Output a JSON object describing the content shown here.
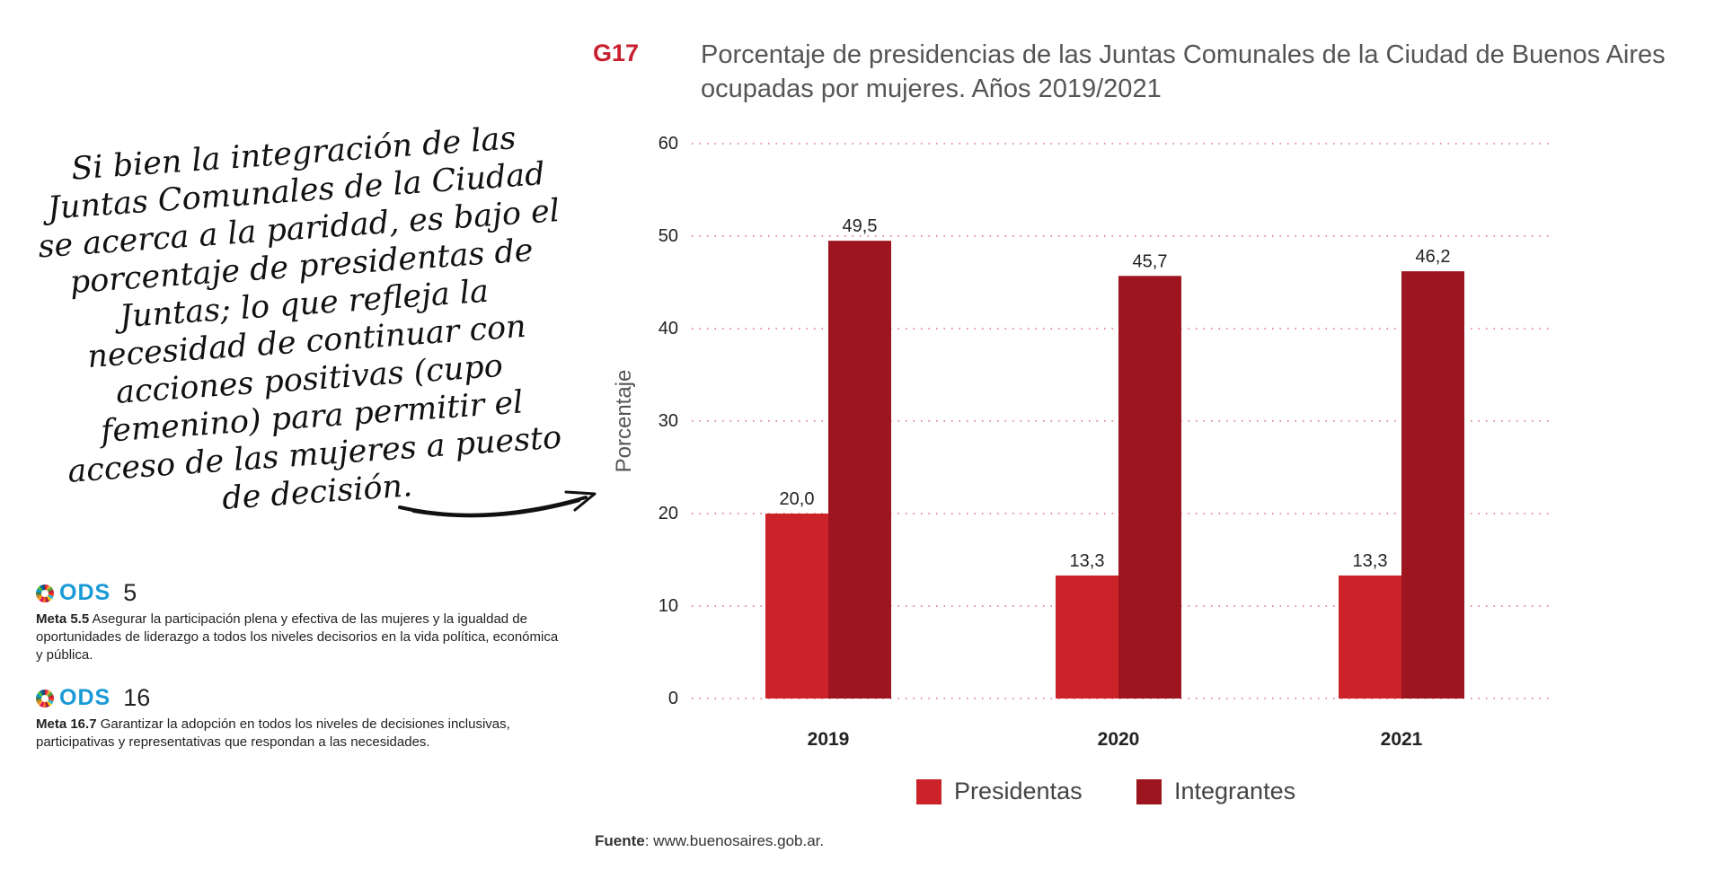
{
  "header": {
    "code": "G17",
    "title_line1": "Porcentaje de presidencias de las Juntas Comunales de la Ciudad de Buenos Aires",
    "title_line2": "ocupadas por mujeres. Años 2019/2021"
  },
  "quote": {
    "text": "Si bien la integración de las Juntas Comunales de la Ciudad se acerca a la paridad, es bajo el porcentaje de presidentas de Juntas; lo que refleja la necesidad de continuar con acciones positivas (cupo femenino) para permitir el acceso de las mujeres a puesto de decisión."
  },
  "ods": [
    {
      "word": "ODS",
      "number": "5",
      "meta_label": "Meta 5.5",
      "meta_text": "Asegurar la participación plena y efectiva de las mujeres y la igualdad de oportunidades de liderazgo a todos los niveles decisorios en la vida política, económica y pública."
    },
    {
      "word": "ODS",
      "number": "16",
      "meta_label": "Meta 16.7",
      "meta_text": "Garantizar la adopción en todos los niveles de decisiones inclusivas, participativas y representativas que respondan a las necesidades."
    }
  ],
  "source": {
    "label": "Fuente",
    "text": ": www.buenosaires.gob.ar."
  },
  "colors": {
    "presidentas": "#cc2229",
    "integrantes": "#9d151e",
    "gridline": "#d04a6a"
  },
  "chart_data": {
    "type": "bar",
    "ylabel": "Porcentaje",
    "ylim": [
      0,
      60
    ],
    "yticks": [
      0,
      10,
      20,
      30,
      40,
      50,
      60
    ],
    "categories": [
      "2019",
      "2020",
      "2021"
    ],
    "series": [
      {
        "name": "Presidentas",
        "values": [
          20.0,
          13.3,
          13.3
        ],
        "labels": [
          "20,0",
          "13,3",
          "13,3"
        ]
      },
      {
        "name": "Integrantes",
        "values": [
          49.5,
          45.7,
          46.2
        ],
        "labels": [
          "49,5",
          "45,7",
          "46,2"
        ]
      }
    ],
    "grid": true,
    "legend_position": "bottom"
  }
}
